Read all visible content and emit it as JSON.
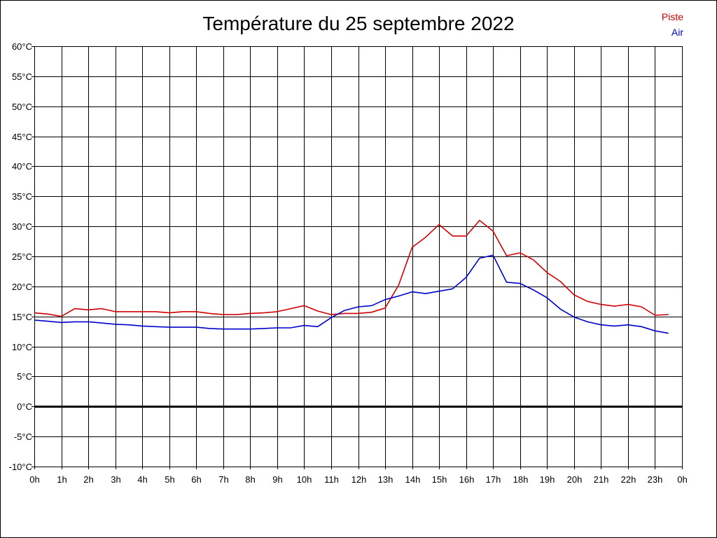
{
  "chart_data": {
    "type": "line",
    "title": "Température du 25 septembre 2022",
    "xlabel": "",
    "ylabel": "",
    "x_tick_labels": [
      "0h",
      "1h",
      "2h",
      "3h",
      "4h",
      "5h",
      "6h",
      "7h",
      "8h",
      "9h",
      "10h",
      "11h",
      "12h",
      "13h",
      "14h",
      "15h",
      "16h",
      "17h",
      "18h",
      "19h",
      "20h",
      "21h",
      "22h",
      "23h",
      "0h"
    ],
    "y_tick_labels": [
      "60°C",
      "55°C",
      "50°C",
      "45°C",
      "40°C",
      "35°C",
      "30°C",
      "25°C",
      "20°C",
      "15°C",
      "10°C",
      "5°C",
      "0°C",
      "-5°C",
      "-10°C"
    ],
    "xlim": [
      0,
      24
    ],
    "ylim": [
      -10,
      60
    ],
    "grid": true,
    "legend_position": "top-right",
    "x": [
      0,
      0.5,
      1,
      1.5,
      2,
      2.5,
      3,
      3.5,
      4,
      4.5,
      5,
      5.5,
      6,
      6.5,
      7,
      7.5,
      8,
      8.5,
      9,
      9.5,
      10,
      10.5,
      11,
      11.5,
      12,
      12.5,
      13,
      13.5,
      14,
      14.5,
      15,
      15.5,
      16,
      16.5,
      17,
      17.5,
      18,
      18.5,
      19,
      19.5,
      20,
      20.5,
      21,
      21.5,
      22,
      22.5,
      23,
      23.5
    ],
    "series": [
      {
        "name": "Piste",
        "color": "#d00000",
        "values": [
          15.6,
          15.4,
          15.0,
          16.3,
          16.1,
          16.3,
          15.8,
          15.8,
          15.8,
          15.8,
          15.6,
          15.8,
          15.8,
          15.5,
          15.3,
          15.3,
          15.5,
          15.6,
          15.8,
          16.3,
          16.8,
          15.9,
          15.3,
          15.5,
          15.5,
          15.7,
          16.4,
          20.2,
          26.5,
          28.2,
          30.3,
          28.4,
          28.4,
          31.0,
          29.2,
          25.1,
          25.6,
          24.4,
          22.3,
          20.8,
          18.6,
          17.5,
          17.0,
          16.7,
          17.0,
          16.6,
          15.2,
          15.3
        ]
      },
      {
        "name": "Air",
        "color": "#0000cc",
        "values": [
          14.4,
          14.2,
          14.0,
          14.1,
          14.1,
          13.9,
          13.7,
          13.6,
          13.4,
          13.3,
          13.2,
          13.2,
          13.2,
          13.0,
          12.9,
          12.9,
          12.9,
          13.0,
          13.1,
          13.1,
          13.5,
          13.3,
          14.8,
          16.0,
          16.6,
          16.8,
          17.8,
          18.4,
          19.1,
          18.8,
          19.2,
          19.6,
          21.5,
          24.7,
          25.2,
          20.7,
          20.5,
          19.4,
          18.1,
          16.2,
          14.9,
          14.1,
          13.6,
          13.4,
          13.6,
          13.3,
          12.6,
          12.2
        ]
      }
    ]
  },
  "colors": {
    "background": "#ffffff",
    "grid": "#000000",
    "axis": "#000000",
    "zero_line": "#000000"
  }
}
